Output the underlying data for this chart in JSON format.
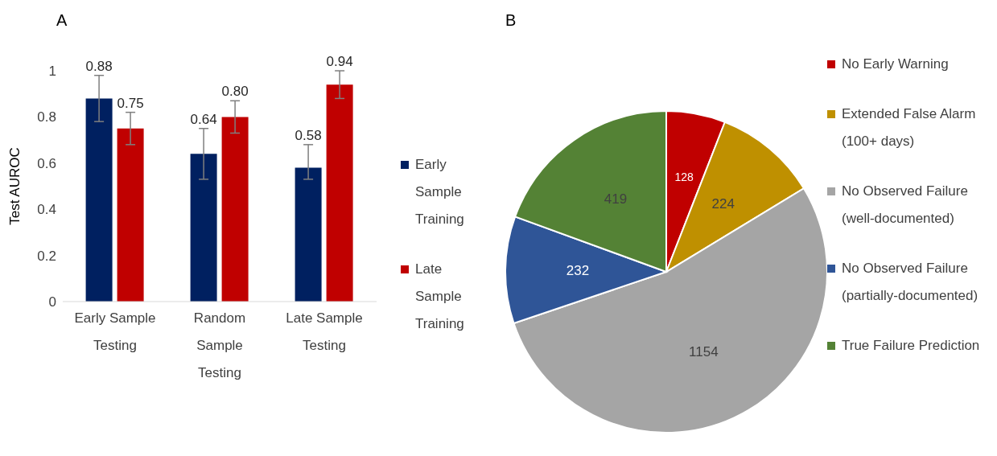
{
  "chart_data": [
    {
      "type": "bar",
      "title": "A",
      "ylabel": "Test AUROC",
      "categories": [
        "Early Sample Testing",
        "Random Sample Testing",
        "Late Sample Testing"
      ],
      "series": [
        {
          "name": "Early Sample Training",
          "color": "#002060",
          "values": [
            0.88,
            0.64,
            0.58
          ],
          "errors": [
            0.1,
            0.11,
            [
              0.53,
              0.68
            ]
          ]
        },
        {
          "name": "Late Sample Training",
          "color": "#c00000",
          "values": [
            0.75,
            0.8,
            0.94
          ],
          "errors": [
            0.07,
            0.07,
            0.06
          ]
        }
      ],
      "ylim": [
        0,
        1
      ],
      "yticks": [
        0,
        0.2,
        0.4,
        0.6,
        0.8,
        1
      ],
      "value_labels": [
        [
          "0.88",
          "0.64",
          "0.58"
        ],
        [
          "0.75",
          "0.80",
          "0.94"
        ]
      ],
      "legend": "right",
      "grid": false
    },
    {
      "type": "pie",
      "title": "B",
      "categories": [
        "No Early Warning",
        "Extended False Alarm (100+ days)",
        "No Observed Failure (well-documented)",
        "No Observed Failure (partially-documented)",
        "True Failure Prediction"
      ],
      "values": [
        128,
        224,
        1154,
        232,
        419
      ],
      "colors": [
        "#c00000",
        "#bf9000",
        "#a5a5a5",
        "#2f5597",
        "#548235"
      ],
      "data_labels": true,
      "legend": "right"
    }
  ]
}
